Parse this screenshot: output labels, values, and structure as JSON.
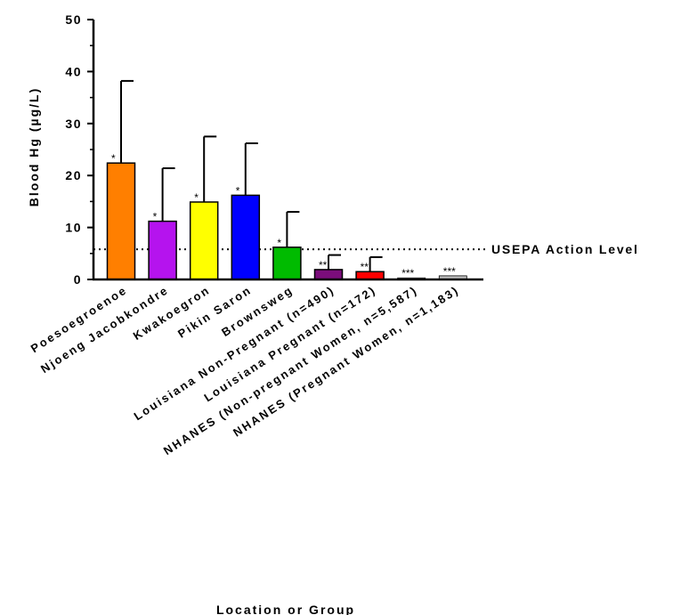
{
  "chart_data": {
    "type": "bar",
    "ylabel": "Blood Hg (µg/L)",
    "xlabel": "Location or Group",
    "ylim": [
      0,
      50
    ],
    "yticks": [
      "0",
      "10",
      "20",
      "30",
      "40",
      "50"
    ],
    "categories": [
      "Poesoegroenoe",
      "Njoeng Jacobkondre",
      "Kwakoegron",
      "Pikin Saron",
      "Brownsweg",
      "Louisiana Non-Pregnant (n=490)",
      "Louisiana Pregnant (n=172)",
      "NHANES (Non-pregnant Women, n=5,587)",
      "NHANES (Pregnant Women, n=1,183)"
    ],
    "values": [
      22.4,
      11.2,
      14.9,
      16.2,
      6.2,
      1.9,
      1.5,
      0.3,
      0.7
    ],
    "error_upper": [
      38.2,
      21.4,
      27.5,
      26.2,
      13.0,
      4.7,
      4.3,
      null,
      null
    ],
    "significance": [
      "*",
      "*",
      "*",
      "*",
      "*",
      "**",
      "**",
      "***",
      "***"
    ],
    "colors": [
      "#ff7f00",
      "#b513ee",
      "#ffff00",
      "#0000ff",
      "#00bb00",
      "#7b0d7b",
      "#ff0000",
      "#d9d9d9",
      "#c0c0c0"
    ],
    "reference_line": {
      "value": 5.8,
      "label": "USEPA Action Level",
      "style": "dotted"
    },
    "grid": false
  }
}
